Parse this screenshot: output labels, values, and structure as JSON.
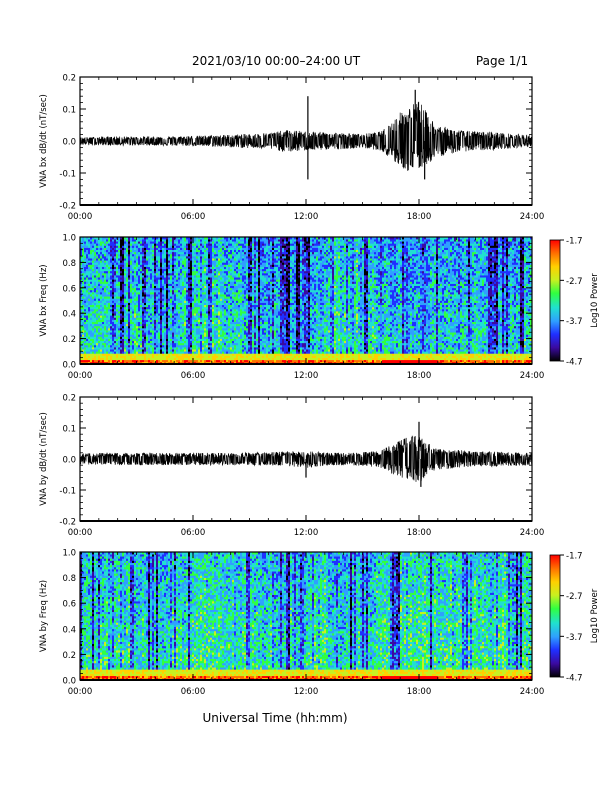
{
  "header": {
    "title": "2021/03/10  00:00–24:00 UT",
    "page": "Page 1/1"
  },
  "footer": {
    "xlabel": "Universal Time (hh:mm)"
  },
  "colors": {
    "trace": "#000000",
    "colorbar": [
      "#000000",
      "#3b0aa0",
      "#1f2fff",
      "#2fa0ff",
      "#20e0d0",
      "#30ff40",
      "#c8f020",
      "#ffd000",
      "#ff7000",
      "#ff0000"
    ]
  },
  "chart_data": [
    {
      "type": "line",
      "ylabel": "VNA bx dB/dt (nT/sec)",
      "xlim": [
        0,
        24
      ],
      "ylim": [
        -0.2,
        0.2
      ],
      "x_ticks": [
        "00:00",
        "06:00",
        "12:00",
        "18:00",
        "24:00"
      ],
      "y_ticks": [
        "-0.2",
        "-0.1",
        "0.0",
        "0.1",
        "0.2"
      ],
      "envelope": {
        "x": [
          0,
          2,
          4,
          6,
          8,
          10,
          11,
          12,
          13,
          14,
          15,
          16,
          16.5,
          17,
          17.5,
          18,
          18.5,
          19,
          20,
          21,
          22,
          23,
          24
        ],
        "upper": [
          0.012,
          0.014,
          0.014,
          0.016,
          0.02,
          0.025,
          0.035,
          0.03,
          0.028,
          0.025,
          0.022,
          0.03,
          0.06,
          0.09,
          0.11,
          0.13,
          0.08,
          0.05,
          0.035,
          0.03,
          0.028,
          0.022,
          0.018
        ],
        "lower": [
          -0.012,
          -0.014,
          -0.014,
          -0.016,
          -0.02,
          -0.025,
          -0.035,
          -0.03,
          -0.028,
          -0.025,
          -0.022,
          -0.03,
          -0.06,
          -0.08,
          -0.1,
          -0.09,
          -0.07,
          -0.05,
          -0.035,
          -0.03,
          -0.028,
          -0.022,
          -0.018
        ]
      },
      "spikes": [
        {
          "x": 12.1,
          "y": 0.14
        },
        {
          "x": 12.1,
          "y": -0.12
        },
        {
          "x": 17.8,
          "y": 0.16
        },
        {
          "x": 18.3,
          "y": -0.12
        }
      ]
    },
    {
      "type": "heatmap",
      "ylabel": "VNA bx Freq (Hz)",
      "xlim": [
        0,
        24
      ],
      "ylim": [
        0.0,
        1.0
      ],
      "x_ticks": [
        "00:00",
        "06:00",
        "12:00",
        "18:00",
        "24:00"
      ],
      "y_ticks": [
        "0.0",
        "0.2",
        "0.4",
        "0.6",
        "0.8",
        "1.0"
      ],
      "colorbar": {
        "label": "Log10 Power",
        "range": [
          -4.7,
          -1.7
        ],
        "ticks": [
          "-1.7",
          "-2.7",
          "-3.7",
          "-4.7"
        ]
      },
      "description_level": {
        "x": [
          0,
          4,
          7,
          10,
          13,
          14,
          16,
          18,
          20,
          24
        ],
        "mean_log_power": [
          -3.4,
          -3.5,
          -3.3,
          -3.6,
          -3.5,
          -3.2,
          -3.5,
          -3.6,
          -3.5,
          -3.5
        ]
      }
    },
    {
      "type": "line",
      "ylabel": "VNA by dB/dt (nT/sec)",
      "xlim": [
        0,
        24
      ],
      "ylim": [
        -0.2,
        0.2
      ],
      "x_ticks": [
        "00:00",
        "06:00",
        "12:00",
        "18:00",
        "24:00"
      ],
      "y_ticks": [
        "-0.2",
        "-0.1",
        "0.0",
        "0.1",
        "0.2"
      ],
      "envelope": {
        "x": [
          0,
          2,
          4,
          6,
          8,
          10,
          11,
          12,
          13,
          14,
          15,
          16,
          16.5,
          17,
          17.5,
          18,
          18.5,
          19,
          20,
          21,
          22,
          23,
          24
        ],
        "upper": [
          0.018,
          0.02,
          0.02,
          0.02,
          0.02,
          0.022,
          0.025,
          0.025,
          0.022,
          0.02,
          0.022,
          0.03,
          0.045,
          0.06,
          0.075,
          0.08,
          0.05,
          0.035,
          0.03,
          0.025,
          0.025,
          0.022,
          0.02
        ],
        "lower": [
          -0.018,
          -0.02,
          -0.02,
          -0.02,
          -0.02,
          -0.022,
          -0.025,
          -0.03,
          -0.022,
          -0.02,
          -0.022,
          -0.03,
          -0.045,
          -0.06,
          -0.07,
          -0.08,
          -0.05,
          -0.035,
          -0.03,
          -0.025,
          -0.025,
          -0.022,
          -0.02
        ]
      },
      "spikes": [
        {
          "x": 12.0,
          "y": -0.06
        },
        {
          "x": 18.0,
          "y": 0.12
        },
        {
          "x": 18.1,
          "y": -0.09
        }
      ]
    },
    {
      "type": "heatmap",
      "ylabel": "VNA by Freq (Hz)",
      "xlim": [
        0,
        24
      ],
      "ylim": [
        0.0,
        1.0
      ],
      "x_ticks": [
        "00:00",
        "06:00",
        "12:00",
        "18:00",
        "24:00"
      ],
      "y_ticks": [
        "0.0",
        "0.2",
        "0.4",
        "0.6",
        "0.8",
        "1.0"
      ],
      "colorbar": {
        "label": "Log10 Power",
        "range": [
          -4.7,
          -1.7
        ],
        "ticks": [
          "-1.7",
          "-2.7",
          "-3.7",
          "-4.7"
        ]
      },
      "description_level": {
        "x": [
          0,
          4,
          7,
          10,
          13,
          14,
          16,
          18,
          20,
          24
        ],
        "mean_log_power": [
          -3.3,
          -3.4,
          -3.3,
          -3.4,
          -3.3,
          -3.5,
          -3.3,
          -3.3,
          -3.3,
          -3.3
        ]
      }
    }
  ]
}
